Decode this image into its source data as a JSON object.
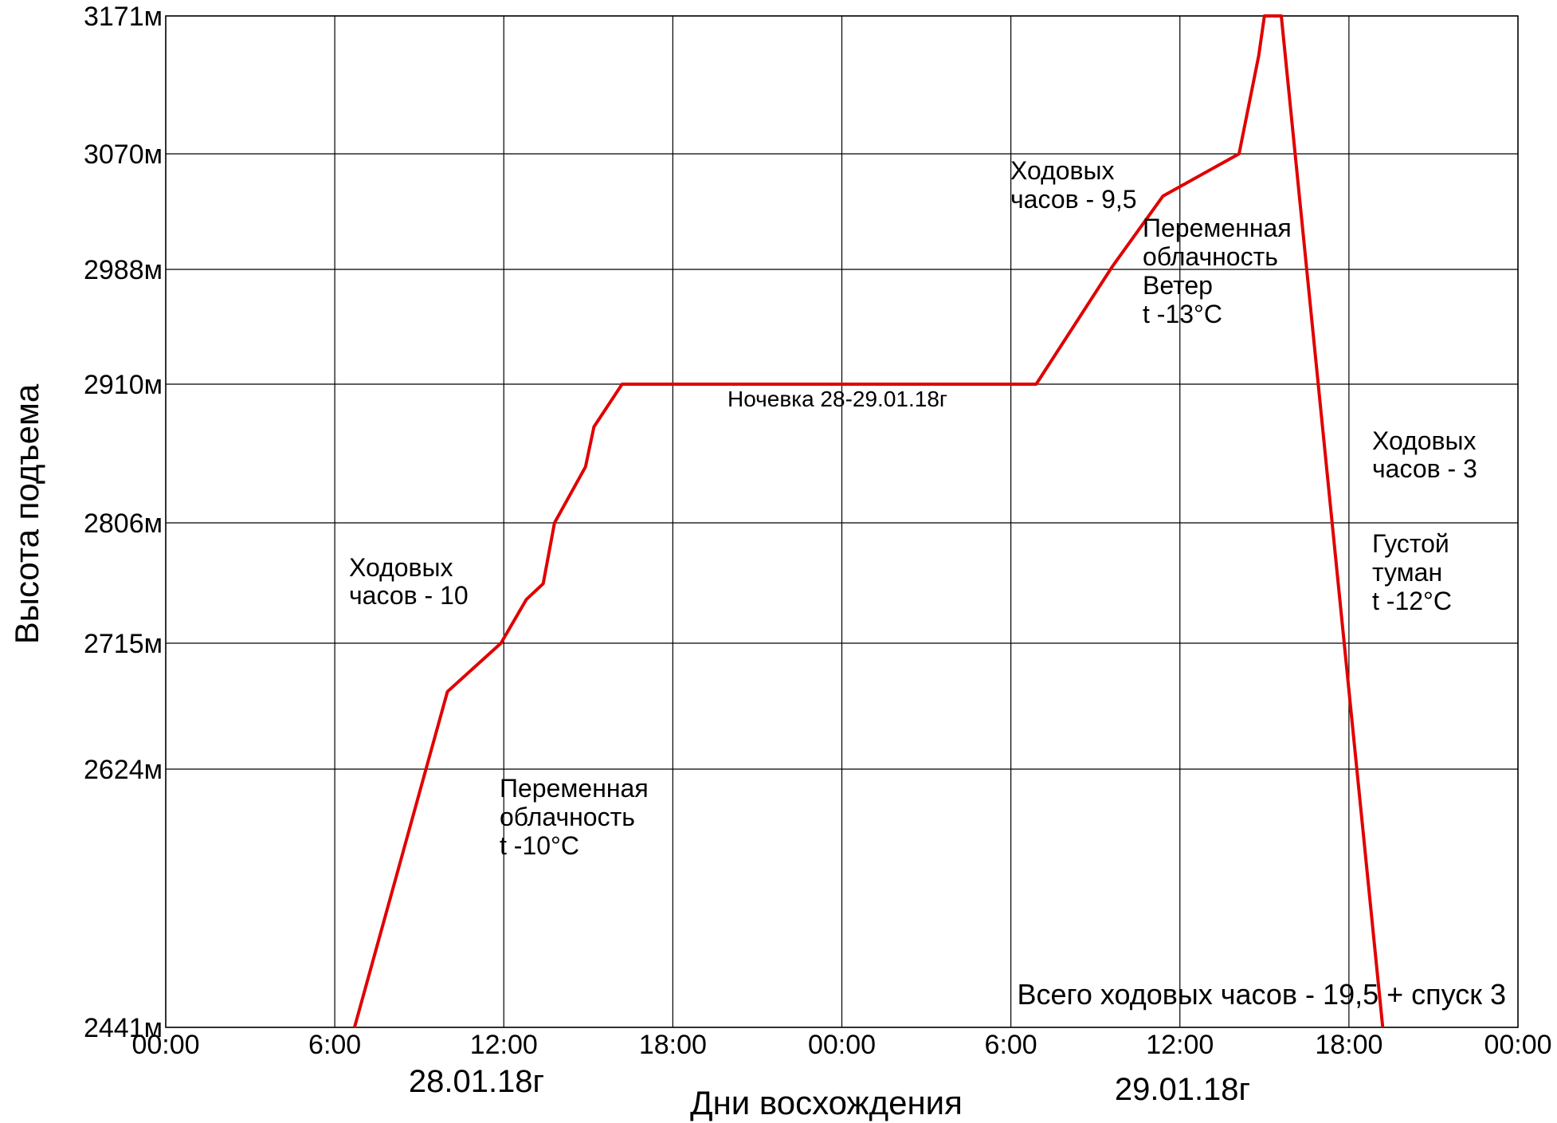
{
  "chart_data": {
    "type": "line",
    "ylabel": "Высота подъема",
    "xlabel": "Дни восхождения",
    "x_ticks": [
      "00:00",
      "6:00",
      "12:00",
      "18:00",
      "00:00",
      "6:00",
      "12:00",
      "18:00",
      "00:00"
    ],
    "x_tick_hours": [
      0,
      6,
      12,
      18,
      24,
      30,
      36,
      42,
      48
    ],
    "y_ticks": [
      "2441м",
      "2624м",
      "2715м",
      "2806м",
      "2910м",
      "2988м",
      "3070м",
      "3171м"
    ],
    "y_tick_values": [
      2441,
      2624,
      2715,
      2806,
      2910,
      2988,
      3070,
      3171
    ],
    "dates": [
      "28.01.18г",
      "29.01.18г"
    ],
    "grid": true,
    "line_color": "#e00000",
    "series": [
      {
        "x": [
          6.7,
          10.0,
          11.9,
          12.8,
          13.4,
          13.8,
          14.9,
          15.2,
          16.2,
          30.9,
          33.6,
          35.4,
          38.1,
          38.8,
          39.0,
          39.6,
          43.2
        ],
        "y": [
          2441,
          2680,
          2715,
          2748,
          2760,
          2806,
          2848,
          2878,
          2910,
          2910,
          2990,
          3040,
          3070,
          3142,
          3171,
          3171,
          2441
        ]
      }
    ],
    "annotations": {
      "day1_hours": [
        "Ходовых",
        "часов - 10"
      ],
      "day1_weather": [
        "Переменная",
        "облачность",
        "t -10°C"
      ],
      "overnight": "Ночевка 28-29.01.18г",
      "day2_hours": [
        "Ходовых",
        "часов - 9,5"
      ],
      "day2_weather": [
        "Переменная",
        "облачность",
        "Ветер",
        "t -13°C"
      ],
      "descent_hours": [
        "Ходовых",
        "часов - 3"
      ],
      "descent_weather": [
        "Густой",
        "туман",
        "t -12°C"
      ],
      "total": "Всего ходовых часов - 19,5 + спуск 3"
    }
  }
}
